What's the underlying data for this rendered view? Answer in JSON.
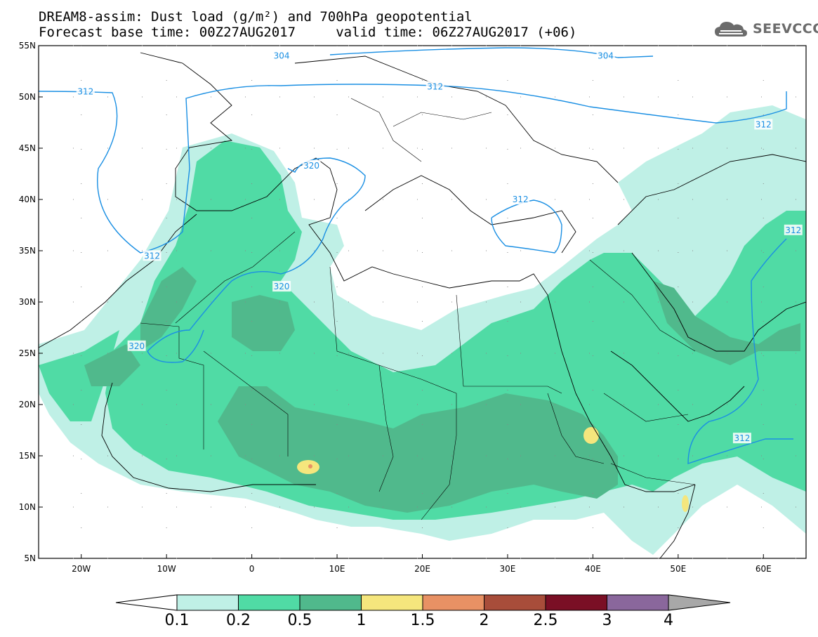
{
  "header": {
    "title_line1": "DREAM8-assim: Dust load (g/m²) and 700hPa geopotential",
    "title_line2": "Forecast base time: 00Z27AUG2017     valid time: 06Z27AUG2017 (+06)",
    "logo_text": "SEEVCCC",
    "logo_icon": "cloud-icon"
  },
  "map": {
    "lon_range": [
      -25,
      65
    ],
    "lat_range": [
      5,
      55
    ],
    "lon_ticks": [
      "20W",
      "10W",
      "0",
      "10E",
      "20E",
      "30E",
      "40E",
      "50E",
      "60E"
    ],
    "lon_tick_values": [
      -20,
      -10,
      0,
      10,
      20,
      30,
      40,
      50,
      60
    ],
    "lat_ticks": [
      "55N",
      "50N",
      "45N",
      "40N",
      "35N",
      "30N",
      "25N",
      "20N",
      "15N",
      "10N",
      "5N"
    ],
    "lat_tick_values": [
      55,
      50,
      45,
      40,
      35,
      30,
      25,
      20,
      15,
      10,
      5
    ],
    "contour_labels": [
      {
        "text": "304",
        "lon": 3.5,
        "lat": 54
      },
      {
        "text": "304",
        "lon": 41.5,
        "lat": 54
      },
      {
        "text": "312",
        "lon": -19.5,
        "lat": 50.5
      },
      {
        "text": "312",
        "lon": 21.5,
        "lat": 51
      },
      {
        "text": "312",
        "lon": 60,
        "lat": 47.3
      },
      {
        "text": "312",
        "lon": -11.7,
        "lat": 34.5
      },
      {
        "text": "312",
        "lon": 31.5,
        "lat": 40
      },
      {
        "text": "312",
        "lon": 63.5,
        "lat": 37
      },
      {
        "text": "312",
        "lon": 57.5,
        "lat": 16.7
      },
      {
        "text": "320",
        "lon": 7,
        "lat": 43.3
      },
      {
        "text": "320",
        "lon": 3.5,
        "lat": 31.5
      },
      {
        "text": "320",
        "lon": -13.5,
        "lat": 25.7
      }
    ],
    "colors": {
      "c01": "#bff0e6",
      "c02": "#50dba5",
      "c05": "#50b98c",
      "c1": "#f5e67d",
      "c15": "#e89164",
      "c2": "#a84d3a",
      "c25": "#7a0f25",
      "c3": "#8a679c",
      "c4": "#a8a8a8",
      "contour": "#1a8fe3"
    }
  },
  "colorbar": {
    "labels": [
      "0.1",
      "0.2",
      "0.5",
      "1",
      "1.5",
      "2",
      "2.5",
      "3",
      "4"
    ],
    "colors": [
      "#bff0e6",
      "#50dba5",
      "#50b98c",
      "#f5e67d",
      "#e89164",
      "#a84d3a",
      "#7a0f25",
      "#8a679c"
    ],
    "low_arrow_color": "#ffffff",
    "high_arrow_color": "#a8a8a8"
  }
}
